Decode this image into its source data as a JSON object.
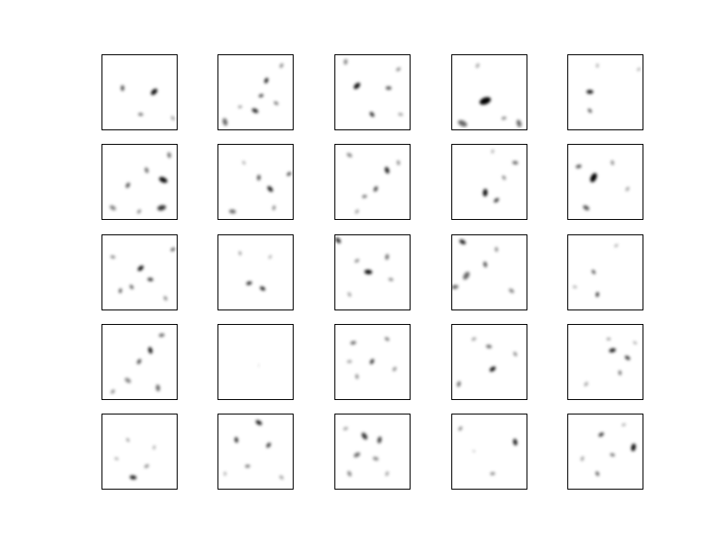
{
  "figure": {
    "rows": 5,
    "cols": 5,
    "background": "#ffffff",
    "frame_color": "#000000",
    "ink_color": "#000000",
    "tiles": [
      {
        "row": 0,
        "col": 0,
        "marks": [
          [
            0.28,
            0.45,
            0.06,
            0.7
          ],
          [
            0.7,
            0.5,
            0.08,
            0.95
          ],
          [
            0.52,
            0.8,
            0.05,
            0.6
          ],
          [
            0.95,
            0.85,
            0.05,
            0.4
          ]
        ]
      },
      {
        "row": 0,
        "col": 1,
        "marks": [
          [
            0.65,
            0.35,
            0.06,
            0.9
          ],
          [
            0.58,
            0.55,
            0.05,
            0.8
          ],
          [
            0.5,
            0.75,
            0.07,
            0.85
          ],
          [
            0.1,
            0.9,
            0.08,
            0.6
          ],
          [
            0.85,
            0.15,
            0.05,
            0.5
          ],
          [
            0.3,
            0.7,
            0.04,
            0.5
          ],
          [
            0.78,
            0.65,
            0.05,
            0.6
          ]
        ]
      },
      {
        "row": 0,
        "col": 2,
        "marks": [
          [
            0.3,
            0.42,
            0.08,
            0.95
          ],
          [
            0.72,
            0.45,
            0.06,
            0.7
          ],
          [
            0.5,
            0.8,
            0.06,
            0.85
          ],
          [
            0.15,
            0.1,
            0.06,
            0.5
          ],
          [
            0.85,
            0.2,
            0.05,
            0.5
          ],
          [
            0.88,
            0.8,
            0.05,
            0.4
          ]
        ]
      },
      {
        "row": 0,
        "col": 3,
        "marks": [
          [
            0.45,
            0.62,
            0.12,
            1.0
          ],
          [
            0.15,
            0.92,
            0.1,
            0.6
          ],
          [
            0.9,
            0.92,
            0.08,
            0.6
          ],
          [
            0.35,
            0.15,
            0.05,
            0.4
          ],
          [
            0.7,
            0.85,
            0.05,
            0.5
          ]
        ]
      },
      {
        "row": 0,
        "col": 4,
        "marks": [
          [
            0.3,
            0.5,
            0.07,
            0.9
          ],
          [
            0.3,
            0.75,
            0.05,
            0.7
          ],
          [
            0.4,
            0.15,
            0.04,
            0.4
          ],
          [
            0.95,
            0.2,
            0.04,
            0.4
          ]
        ]
      },
      {
        "row": 1,
        "col": 0,
        "marks": [
          [
            0.82,
            0.48,
            0.09,
            0.95
          ],
          [
            0.6,
            0.35,
            0.06,
            0.6
          ],
          [
            0.35,
            0.55,
            0.06,
            0.7
          ],
          [
            0.8,
            0.85,
            0.09,
            0.8
          ],
          [
            0.15,
            0.85,
            0.07,
            0.5
          ],
          [
            0.9,
            0.15,
            0.06,
            0.6
          ],
          [
            0.5,
            0.9,
            0.05,
            0.5
          ]
        ]
      },
      {
        "row": 1,
        "col": 1,
        "marks": [
          [
            0.7,
            0.6,
            0.07,
            0.9
          ],
          [
            0.55,
            0.45,
            0.06,
            0.7
          ],
          [
            0.95,
            0.4,
            0.05,
            0.8
          ],
          [
            0.2,
            0.9,
            0.07,
            0.6
          ],
          [
            0.35,
            0.25,
            0.04,
            0.4
          ],
          [
            0.75,
            0.85,
            0.05,
            0.5
          ]
        ]
      },
      {
        "row": 1,
        "col": 2,
        "marks": [
          [
            0.7,
            0.35,
            0.07,
            0.9
          ],
          [
            0.55,
            0.6,
            0.06,
            0.75
          ],
          [
            0.4,
            0.7,
            0.05,
            0.6
          ],
          [
            0.2,
            0.15,
            0.06,
            0.5
          ],
          [
            0.85,
            0.25,
            0.05,
            0.5
          ],
          [
            0.3,
            0.9,
            0.05,
            0.4
          ]
        ]
      },
      {
        "row": 1,
        "col": 3,
        "marks": [
          [
            0.45,
            0.65,
            0.08,
            0.95
          ],
          [
            0.6,
            0.75,
            0.06,
            0.8
          ],
          [
            0.85,
            0.25,
            0.06,
            0.6
          ],
          [
            0.7,
            0.45,
            0.05,
            0.5
          ],
          [
            0.55,
            0.1,
            0.04,
            0.4
          ]
        ]
      },
      {
        "row": 1,
        "col": 4,
        "marks": [
          [
            0.35,
            0.45,
            0.1,
            1.0
          ],
          [
            0.15,
            0.3,
            0.06,
            0.7
          ],
          [
            0.25,
            0.85,
            0.07,
            0.7
          ],
          [
            0.6,
            0.25,
            0.05,
            0.5
          ],
          [
            0.8,
            0.6,
            0.05,
            0.4
          ]
        ]
      },
      {
        "row": 2,
        "col": 0,
        "marks": [
          [
            0.52,
            0.45,
            0.07,
            0.95
          ],
          [
            0.65,
            0.6,
            0.06,
            0.8
          ],
          [
            0.4,
            0.7,
            0.05,
            0.7
          ],
          [
            0.25,
            0.75,
            0.05,
            0.7
          ],
          [
            0.95,
            0.2,
            0.05,
            0.7
          ],
          [
            0.15,
            0.3,
            0.05,
            0.5
          ],
          [
            0.85,
            0.85,
            0.05,
            0.5
          ]
        ]
      },
      {
        "row": 2,
        "col": 1,
        "marks": [
          [
            0.42,
            0.65,
            0.06,
            0.85
          ],
          [
            0.6,
            0.72,
            0.06,
            0.9
          ],
          [
            0.3,
            0.25,
            0.04,
            0.5
          ],
          [
            0.7,
            0.3,
            0.04,
            0.4
          ]
        ]
      },
      {
        "row": 2,
        "col": 2,
        "marks": [
          [
            0.45,
            0.5,
            0.08,
            0.95
          ],
          [
            0.05,
            0.08,
            0.07,
            0.85
          ],
          [
            0.7,
            0.3,
            0.06,
            0.6
          ],
          [
            0.3,
            0.35,
            0.05,
            0.5
          ],
          [
            0.75,
            0.6,
            0.05,
            0.5
          ],
          [
            0.2,
            0.8,
            0.05,
            0.4
          ]
        ]
      },
      {
        "row": 2,
        "col": 3,
        "marks": [
          [
            0.15,
            0.1,
            0.07,
            0.9
          ],
          [
            0.45,
            0.4,
            0.06,
            0.7
          ],
          [
            0.2,
            0.55,
            0.09,
            0.6
          ],
          [
            0.05,
            0.7,
            0.07,
            0.6
          ],
          [
            0.8,
            0.75,
            0.06,
            0.5
          ],
          [
            0.6,
            0.2,
            0.05,
            0.5
          ]
        ]
      },
      {
        "row": 2,
        "col": 4,
        "marks": [
          [
            0.35,
            0.5,
            0.05,
            0.7
          ],
          [
            0.4,
            0.8,
            0.05,
            0.9
          ],
          [
            0.65,
            0.15,
            0.04,
            0.4
          ],
          [
            0.1,
            0.7,
            0.04,
            0.4
          ]
        ]
      },
      {
        "row": 3,
        "col": 0,
        "marks": [
          [
            0.65,
            0.35,
            0.07,
            0.9
          ],
          [
            0.5,
            0.5,
            0.06,
            0.7
          ],
          [
            0.8,
            0.15,
            0.06,
            0.6
          ],
          [
            0.35,
            0.75,
            0.07,
            0.5
          ],
          [
            0.75,
            0.85,
            0.07,
            0.6
          ],
          [
            0.15,
            0.9,
            0.05,
            0.5
          ]
        ]
      },
      {
        "row": 3,
        "col": 1,
        "marks": [
          [
            0.55,
            0.55,
            0.02,
            0.15
          ]
        ]
      },
      {
        "row": 3,
        "col": 2,
        "marks": [
          [
            0.5,
            0.5,
            0.06,
            0.8
          ],
          [
            0.25,
            0.25,
            0.06,
            0.6
          ],
          [
            0.7,
            0.2,
            0.05,
            0.6
          ],
          [
            0.3,
            0.7,
            0.05,
            0.5
          ],
          [
            0.8,
            0.6,
            0.05,
            0.5
          ],
          [
            0.2,
            0.5,
            0.05,
            0.4
          ]
        ]
      },
      {
        "row": 3,
        "col": 3,
        "marks": [
          [
            0.55,
            0.6,
            0.07,
            0.95
          ],
          [
            0.5,
            0.3,
            0.06,
            0.6
          ],
          [
            0.85,
            0.4,
            0.05,
            0.5
          ],
          [
            0.1,
            0.8,
            0.06,
            0.6
          ],
          [
            0.3,
            0.2,
            0.05,
            0.4
          ]
        ]
      },
      {
        "row": 3,
        "col": 4,
        "marks": [
          [
            0.6,
            0.35,
            0.07,
            0.9
          ],
          [
            0.8,
            0.45,
            0.06,
            0.8
          ],
          [
            0.7,
            0.65,
            0.05,
            0.6
          ],
          [
            0.25,
            0.8,
            0.05,
            0.4
          ],
          [
            0.55,
            0.2,
            0.04,
            0.5
          ],
          [
            0.9,
            0.25,
            0.04,
            0.4
          ]
        ]
      },
      {
        "row": 4,
        "col": 0,
        "marks": [
          [
            0.42,
            0.85,
            0.07,
            0.9
          ],
          [
            0.35,
            0.35,
            0.04,
            0.5
          ],
          [
            0.7,
            0.45,
            0.04,
            0.4
          ],
          [
            0.6,
            0.7,
            0.05,
            0.5
          ],
          [
            0.2,
            0.6,
            0.04,
            0.4
          ]
        ]
      },
      {
        "row": 4,
        "col": 1,
        "marks": [
          [
            0.55,
            0.12,
            0.07,
            0.9
          ],
          [
            0.25,
            0.35,
            0.06,
            0.85
          ],
          [
            0.68,
            0.42,
            0.06,
            0.8
          ],
          [
            0.4,
            0.7,
            0.05,
            0.6
          ],
          [
            0.85,
            0.85,
            0.05,
            0.4
          ],
          [
            0.1,
            0.8,
            0.04,
            0.4
          ]
        ]
      },
      {
        "row": 4,
        "col": 2,
        "marks": [
          [
            0.4,
            0.3,
            0.08,
            0.8
          ],
          [
            0.6,
            0.35,
            0.07,
            0.75
          ],
          [
            0.3,
            0.55,
            0.07,
            0.6
          ],
          [
            0.55,
            0.6,
            0.06,
            0.5
          ],
          [
            0.2,
            0.8,
            0.06,
            0.5
          ],
          [
            0.7,
            0.8,
            0.05,
            0.4
          ],
          [
            0.15,
            0.2,
            0.05,
            0.4
          ]
        ]
      },
      {
        "row": 4,
        "col": 3,
        "marks": [
          [
            0.85,
            0.38,
            0.07,
            0.9
          ],
          [
            0.12,
            0.2,
            0.05,
            0.5
          ],
          [
            0.55,
            0.8,
            0.05,
            0.5
          ],
          [
            0.3,
            0.5,
            0.03,
            0.3
          ]
        ]
      },
      {
        "row": 4,
        "col": 4,
        "marks": [
          [
            0.88,
            0.45,
            0.08,
            0.95
          ],
          [
            0.45,
            0.28,
            0.06,
            0.8
          ],
          [
            0.6,
            0.55,
            0.05,
            0.6
          ],
          [
            0.4,
            0.8,
            0.05,
            0.7
          ],
          [
            0.2,
            0.6,
            0.05,
            0.4
          ],
          [
            0.75,
            0.15,
            0.04,
            0.4
          ]
        ]
      }
    ]
  }
}
